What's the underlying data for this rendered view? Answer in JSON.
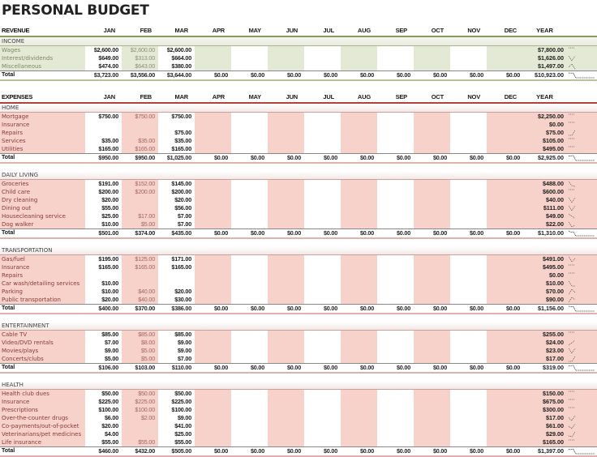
{
  "title": "PERSONAL BUDGET",
  "months": [
    "JAN",
    "FEB",
    "MAR",
    "APR",
    "MAY",
    "JUN",
    "JUL",
    "AUG",
    "SEP",
    "OCT",
    "NOV",
    "DEC"
  ],
  "year_label": "YEAR",
  "colors": {
    "income_accent": "#8a9a5b",
    "income_fill": "#e3e9d4",
    "expense_accent": "#b0443c",
    "expense_fill": "#f6d2cb"
  },
  "revenue": {
    "header": "REVENUE",
    "sections": [
      {
        "name": "INCOME",
        "items": [
          {
            "label": "Wages",
            "values": [
              "$2,600.00",
              "$2,600.00",
              "$2,600.00"
            ],
            "year": "$7,800.00"
          },
          {
            "label": "Interest/dividends",
            "values": [
              "$649.00",
              "$313.00",
              "$664.00"
            ],
            "year": "$1,626.00"
          },
          {
            "label": "Miscellaneous",
            "values": [
              "$474.00",
              "$643.00",
              "$380.00"
            ],
            "year": "$1,497.00"
          }
        ],
        "total_label": "Total",
        "totals": [
          "$3,723.00",
          "$3,556.00",
          "$3,644.00",
          "$0.00",
          "$0.00",
          "$0.00",
          "$0.00",
          "$0.00",
          "$0.00",
          "$0.00",
          "$0.00",
          "$0.00"
        ],
        "year_total": "$10,923.00"
      }
    ]
  },
  "expenses": {
    "header": "EXPENSES",
    "sections": [
      {
        "name": "HOME",
        "items": [
          {
            "label": "Mortgage",
            "values": [
              "$750.00",
              "$750.00",
              "$750.00"
            ],
            "year": "$2,250.00"
          },
          {
            "label": "Insurance",
            "values": [
              "",
              "",
              ""
            ],
            "year": "$0.00"
          },
          {
            "label": "Repairs",
            "values": [
              "",
              "",
              "$75.00"
            ],
            "year": "$75.00"
          },
          {
            "label": "Services",
            "values": [
              "$35.00",
              "$35.00",
              "$35.00"
            ],
            "year": "$105.00"
          },
          {
            "label": "Utilities",
            "values": [
              "$165.00",
              "$165.00",
              "$165.00"
            ],
            "year": "$495.00"
          }
        ],
        "total_label": "Total",
        "totals": [
          "$950.00",
          "$950.00",
          "$1,025.00",
          "$0.00",
          "$0.00",
          "$0.00",
          "$0.00",
          "$0.00",
          "$0.00",
          "$0.00",
          "$0.00",
          "$0.00"
        ],
        "year_total": "$2,925.00"
      },
      {
        "name": "DAILY LIVING",
        "items": [
          {
            "label": "Groceries",
            "values": [
              "$191.00",
              "$152.00",
              "$145.00"
            ],
            "year": "$488.00"
          },
          {
            "label": "Child care",
            "values": [
              "$200.00",
              "$200.00",
              "$200.00"
            ],
            "year": "$600.00"
          },
          {
            "label": "Dry cleaning",
            "values": [
              "$20.00",
              "",
              "$20.00"
            ],
            "year": "$40.00"
          },
          {
            "label": "Dining out",
            "values": [
              "$55.00",
              "",
              "$56.00"
            ],
            "year": "$111.00"
          },
          {
            "label": "Housecleaning service",
            "values": [
              "$25.00",
              "$17.00",
              "$7.00"
            ],
            "year": "$49.00"
          },
          {
            "label": "Dog walker",
            "values": [
              "$10.00",
              "$5.00",
              "$7.00"
            ],
            "year": "$22.00"
          }
        ],
        "total_label": "Total",
        "totals": [
          "$501.00",
          "$374.00",
          "$435.00",
          "$0.00",
          "$0.00",
          "$0.00",
          "$0.00",
          "$0.00",
          "$0.00",
          "$0.00",
          "$0.00",
          "$0.00"
        ],
        "year_total": "$1,310.00"
      },
      {
        "name": "TRANSPORTATION",
        "items": [
          {
            "label": "Gas/fuel",
            "values": [
              "$195.00",
              "$125.00",
              "$171.00"
            ],
            "year": "$491.00"
          },
          {
            "label": "Insurance",
            "values": [
              "$165.00",
              "$165.00",
              "$165.00"
            ],
            "year": "$495.00"
          },
          {
            "label": "Repairs",
            "values": [
              "",
              "",
              ""
            ],
            "year": "$0.00"
          },
          {
            "label": "Car wash/detailing services",
            "values": [
              "$10.00",
              "",
              ""
            ],
            "year": "$10.00"
          },
          {
            "label": "Parking",
            "values": [
              "$10.00",
              "$40.00",
              "$20.00"
            ],
            "year": "$70.00"
          },
          {
            "label": "Public transportation",
            "values": [
              "$20.00",
              "$40.00",
              "$30.00"
            ],
            "year": "$90.00"
          }
        ],
        "total_label": "Total",
        "totals": [
          "$400.00",
          "$370.00",
          "$386.00",
          "$0.00",
          "$0.00",
          "$0.00",
          "$0.00",
          "$0.00",
          "$0.00",
          "$0.00",
          "$0.00",
          "$0.00"
        ],
        "year_total": "$1,156.00"
      },
      {
        "name": "ENTERTAINMENT",
        "items": [
          {
            "label": "Cable TV",
            "values": [
              "$85.00",
              "$85.00",
              "$85.00"
            ],
            "year": "$255.00"
          },
          {
            "label": "Video/DVD rentals",
            "values": [
              "$7.00",
              "$8.00",
              "$9.00"
            ],
            "year": "$24.00"
          },
          {
            "label": "Movies/plays",
            "values": [
              "$9.00",
              "$5.00",
              "$9.00"
            ],
            "year": "$23.00"
          },
          {
            "label": "Concerts/clubs",
            "values": [
              "$5.00",
              "$5.00",
              "$7.00"
            ],
            "year": "$17.00"
          }
        ],
        "total_label": "Total",
        "totals": [
          "$106.00",
          "$103.00",
          "$110.00",
          "$0.00",
          "$0.00",
          "$0.00",
          "$0.00",
          "$0.00",
          "$0.00",
          "$0.00",
          "$0.00",
          "$0.00"
        ],
        "year_total": "$319.00"
      },
      {
        "name": "HEALTH",
        "items": [
          {
            "label": "Health club dues",
            "values": [
              "$50.00",
              "$50.00",
              "$50.00"
            ],
            "year": "$150.00"
          },
          {
            "label": "Insurance",
            "values": [
              "$225.00",
              "$225.00",
              "$225.00"
            ],
            "year": "$675.00"
          },
          {
            "label": "Prescriptions",
            "values": [
              "$100.00",
              "$100.00",
              "$100.00"
            ],
            "year": "$300.00"
          },
          {
            "label": "Over-the-counter drugs",
            "values": [
              "$6.00",
              "$2.00",
              "$9.00"
            ],
            "year": "$17.00"
          },
          {
            "label": "Co-payments/out-of-pocket",
            "values": [
              "$20.00",
              "",
              "$41.00"
            ],
            "year": "$61.00"
          },
          {
            "label": "Veterinarians/pet medicines",
            "values": [
              "$4.00",
              "",
              "$25.00"
            ],
            "year": "$29.00"
          },
          {
            "label": "Life insurance",
            "values": [
              "$55.00",
              "$55.00",
              "$55.00"
            ],
            "year": "$165.00"
          }
        ],
        "total_label": "Total",
        "totals": [
          "$460.00",
          "$432.00",
          "$505.00",
          "$0.00",
          "$0.00",
          "$0.00",
          "$0.00",
          "$0.00",
          "$0.00",
          "$0.00",
          "$0.00",
          "$0.00"
        ],
        "year_total": "$1,397.00"
      }
    ]
  }
}
